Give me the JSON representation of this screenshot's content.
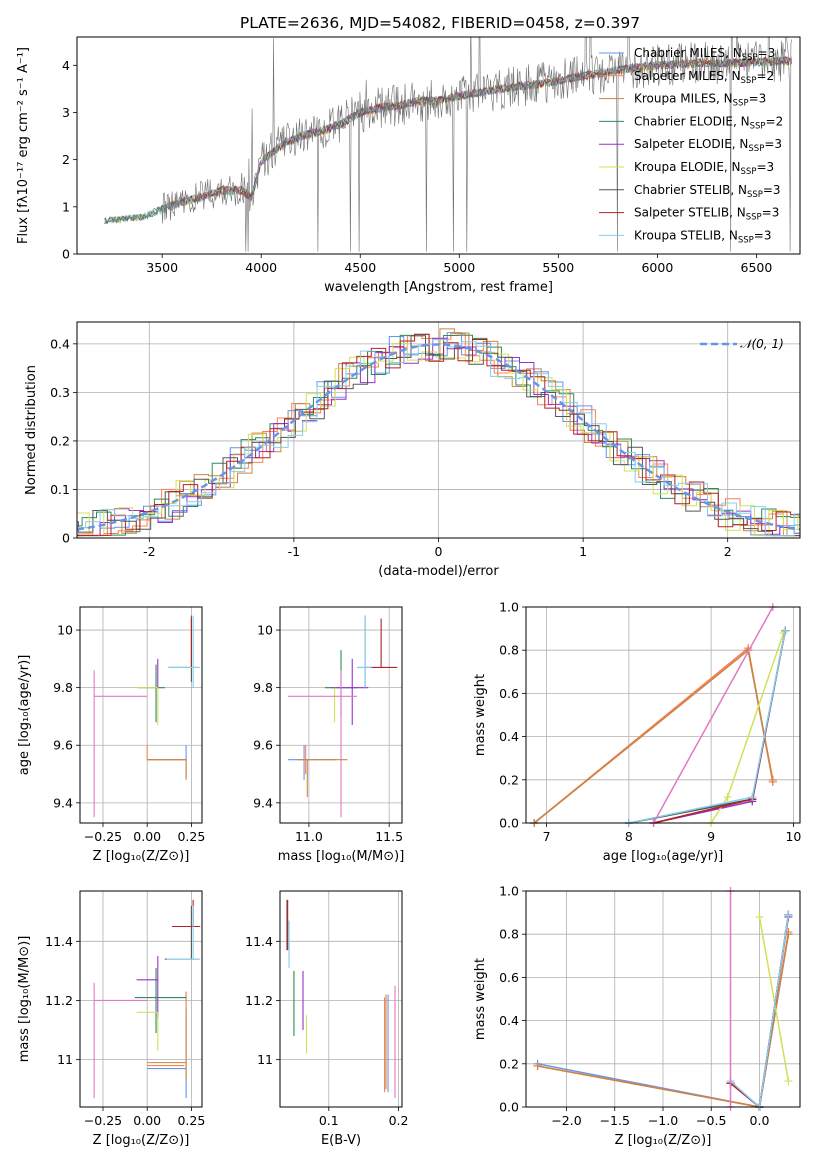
{
  "figure": {
    "title": "PLATE=2636, MJD=54082, FIBERID=0458, z=0.397"
  },
  "series": [
    {
      "name": "Chabrier MILES, N$_{SSP}$=3",
      "label": "Chabrier MILES, N",
      "sub": "SSP",
      "tail": "=3",
      "color": "#6495ed"
    },
    {
      "name": "Salpeter MILES, N$_{SSP}$=2",
      "label": "Salpeter MILES, N",
      "sub": "SSP",
      "tail": "=2",
      "color": "#ff7f50"
    },
    {
      "name": "Kroupa MILES, N$_{SSP}$=3",
      "label": "Kroupa MILES, N",
      "sub": "SSP",
      "tail": "=3",
      "color": "#cd853f"
    },
    {
      "name": "Chabrier ELODIE, N$_{SSP}$=2",
      "label": "Chabrier ELODIE, N",
      "sub": "SSP",
      "tail": "=2",
      "color": "#2e8b57"
    },
    {
      "name": "Salpeter ELODIE, N$_{SSP}$=3",
      "label": "Salpeter ELODIE, N",
      "sub": "SSP",
      "tail": "=3",
      "color": "#9932cc"
    },
    {
      "name": "Kroupa ELODIE, N$_{SSP}$=3",
      "label": "Kroupa ELODIE, N",
      "sub": "SSP",
      "tail": "=3",
      "color": "#d4e157"
    },
    {
      "name": "Chabrier STELIB, N$_{SSP}$=3",
      "label": "Chabrier STELIB, N",
      "sub": "SSP",
      "tail": "=3",
      "color": "#555555"
    },
    {
      "name": "Salpeter STELIB, N$_{SSP}$=3",
      "label": "Salpeter STELIB, N",
      "sub": "SSP",
      "tail": "=3",
      "color": "#b22222"
    },
    {
      "name": "Kroupa STELIB, N$_{SSP}$=3",
      "label": "Kroupa STELIB, N",
      "sub": "SSP",
      "tail": "=3",
      "color": "#87ceeb"
    }
  ],
  "extra_color": "#e377c2",
  "chart_data": [
    {
      "id": "spectrum",
      "type": "line",
      "xlabel": "wavelength [Angstrom, rest frame]",
      "ylabel": "Flux [f$_\\lambda$10$^{-17}$ erg cm$^{-2}$ s$^{-1}$ A$^{-1}$]",
      "ylabel_text": "Flux [fλ10⁻¹⁷ erg cm⁻² s⁻¹ A⁻¹]",
      "xlim": [
        3070,
        6720
      ],
      "ylim": [
        0,
        4.6
      ],
      "xticks": [
        3500,
        4000,
        4500,
        5000,
        5500,
        6000,
        6500
      ],
      "yticks": [
        0,
        1,
        2,
        3,
        4
      ],
      "continuum": {
        "x": [
          3210,
          3300,
          3400,
          3500,
          3600,
          3700,
          3800,
          3900,
          3950,
          4000,
          4100,
          4200,
          4300,
          4400,
          4500,
          4600,
          4700,
          4800,
          4900,
          5000,
          5200,
          5400,
          5600,
          5800,
          6000,
          6200,
          6400,
          6680
        ],
        "y": [
          0.7,
          0.75,
          0.78,
          0.95,
          1.1,
          1.2,
          1.35,
          1.35,
          1.2,
          1.95,
          2.3,
          2.5,
          2.6,
          2.75,
          3.0,
          3.1,
          3.15,
          3.25,
          3.25,
          3.35,
          3.5,
          3.6,
          3.75,
          3.9,
          4.0,
          4.05,
          4.05,
          4.1
        ]
      },
      "grid": false,
      "legend": "top-right"
    },
    {
      "id": "residuals",
      "type": "histogram",
      "xlabel": "(data-model)/error",
      "ylabel": "Normed distribution",
      "xlim": [
        -2.5,
        2.5
      ],
      "ylim": [
        0,
        0.445
      ],
      "xticks": [
        -2,
        -1,
        0,
        1,
        2
      ],
      "yticks": [
        0.0,
        0.1,
        0.2,
        0.3,
        0.4
      ],
      "bin_width": 0.1,
      "reference_curve": "$\\mathcal{N}(0,1)$",
      "reference_label": "𝒩(0, 1)",
      "reference_color": "#6495ed",
      "grid": true,
      "legend": "top-right"
    },
    {
      "id": "age-vs-Z",
      "type": "scatter",
      "xlabel": "Z [log$_{10}$(Z/Z$_\\odot$)]",
      "xlabel_text": "Z [log₁₀(Z/Z⊙)]",
      "ylabel_text": "age  [log₁₀(age/yr)]",
      "xlim": [
        -0.38,
        0.31
      ],
      "ylim": [
        9.33,
        10.08
      ],
      "xticks": [
        -0.25,
        0.0,
        0.25
      ],
      "xticklabels": [
        "−0.25",
        "0.00",
        "0.25"
      ],
      "yticks": [
        9.4,
        9.6,
        9.8,
        10.0
      ],
      "grid": true,
      "points": [
        {
          "series": 0,
          "x": 0.22,
          "y": 9.55,
          "xerr": [
            0.22,
            0.0
          ],
          "yerr": [
            0.06,
            0.05
          ]
        },
        {
          "series": 1,
          "x": 0.0,
          "y": 9.55,
          "xerr": [
            0.0,
            0.21
          ],
          "yerr": [
            0.0,
            0.05
          ]
        },
        {
          "series": 2,
          "x": 0.22,
          "y": 9.55,
          "xerr": [
            0.22,
            0.0
          ],
          "yerr": [
            0.07,
            0.0
          ]
        },
        {
          "series": 3,
          "x": 0.05,
          "y": 9.8,
          "xerr": [
            0.1,
            0.05
          ],
          "yerr": [
            0.12,
            0.08
          ]
        },
        {
          "series": 4,
          "x": 0.06,
          "y": 9.8,
          "xerr": [
            0.0,
            0.0
          ],
          "yerr": [
            0.0,
            0.1
          ]
        },
        {
          "series": 5,
          "x": 0.06,
          "y": 9.8,
          "xerr": [
            0.12,
            0.0
          ],
          "yerr": [
            0.13,
            0.0
          ]
        },
        {
          "series": 6,
          "x": 0.25,
          "y": 9.87,
          "xerr": [
            0.13,
            0.03
          ],
          "yerr": [
            0.05,
            0.18
          ]
        },
        {
          "series": 7,
          "x": 0.25,
          "y": 9.87,
          "xerr": [
            0.0,
            0.0
          ],
          "yerr": [
            0.0,
            0.17
          ]
        },
        {
          "series": 8,
          "x": 0.26,
          "y": 9.87,
          "xerr": [
            0.14,
            0.04
          ],
          "yerr": [
            0.07,
            0.18
          ]
        },
        {
          "series": -1,
          "x": -0.3,
          "y": 9.77,
          "xerr": [
            0.0,
            0.3
          ],
          "yerr": [
            0.42,
            0.09
          ]
        }
      ]
    },
    {
      "id": "age-vs-mass",
      "type": "scatter",
      "xlabel_text": "mass [log₁₀(M/M⊙)]",
      "xlim": [
        10.82,
        11.58
      ],
      "ylim": [
        9.33,
        10.08
      ],
      "xticks": [
        11.0,
        11.5
      ],
      "xticklabels": [
        "11.0",
        "11.5"
      ],
      "yticks": [
        9.4,
        9.6,
        9.8,
        10.0
      ],
      "grid": true,
      "points": [
        {
          "series": 0,
          "x": 10.97,
          "y": 9.55,
          "xerr": [
            0.1,
            0.2
          ],
          "yerr": [
            0.07,
            0.05
          ]
        },
        {
          "series": 1,
          "x": 10.98,
          "y": 9.55,
          "xerr": [
            0.0,
            0.0
          ],
          "yerr": [
            0.05,
            0.05
          ]
        },
        {
          "series": 2,
          "x": 10.99,
          "y": 9.55,
          "xerr": [
            0.06,
            0.25
          ],
          "yerr": [
            0.13,
            0.0
          ]
        },
        {
          "series": 3,
          "x": 11.2,
          "y": 9.8,
          "xerr": [
            0.1,
            0.1
          ],
          "yerr": [
            0.1,
            0.13
          ]
        },
        {
          "series": 4,
          "x": 11.27,
          "y": 9.8,
          "xerr": [
            0.13,
            0.1
          ],
          "yerr": [
            0.13,
            0.1
          ]
        },
        {
          "series": 5,
          "x": 11.16,
          "y": 9.8,
          "xerr": [
            0.0,
            0.0
          ],
          "yerr": [
            0.12,
            0.0
          ]
        },
        {
          "series": 6,
          "x": 11.35,
          "y": 9.87,
          "xerr": [
            0.05,
            0.02
          ],
          "yerr": [
            0.07,
            0.18
          ]
        },
        {
          "series": 7,
          "x": 11.45,
          "y": 9.87,
          "xerr": [
            0.1,
            0.1
          ],
          "yerr": [
            0.0,
            0.17
          ]
        },
        {
          "series": 8,
          "x": 11.35,
          "y": 9.87,
          "xerr": [
            0.05,
            0.04
          ],
          "yerr": [
            0.07,
            0.18
          ]
        },
        {
          "series": -1,
          "x": 11.2,
          "y": 9.77,
          "xerr": [
            0.33,
            0.1
          ],
          "yerr": [
            0.42,
            0.09
          ]
        }
      ]
    },
    {
      "id": "weight-vs-age",
      "type": "line",
      "xlabel_text": "age  [log₁₀(age/yr)]",
      "ylabel": "mass weight",
      "xlim": [
        6.75,
        10.08
      ],
      "ylim": [
        0,
        1
      ],
      "xticks": [
        7,
        8,
        9,
        10
      ],
      "xticklabels": [
        "7",
        "8",
        "9",
        "10"
      ],
      "yticks": [
        0.0,
        0.2,
        0.4,
        0.6,
        0.8,
        1.0
      ],
      "yticklabels": [
        "0.0",
        "0.2",
        "0.4",
        "0.6",
        "0.8",
        "1.0"
      ],
      "grid": true,
      "lines": [
        {
          "series": 0,
          "x": [
            6.85,
            9.45,
            9.75
          ],
          "y": [
            0.0,
            0.8,
            0.19
          ]
        },
        {
          "series": 1,
          "x": [
            6.85,
            9.45,
            9.75
          ],
          "y": [
            0.0,
            0.81,
            0.19
          ]
        },
        {
          "series": 2,
          "x": [
            6.85,
            9.45,
            9.75
          ],
          "y": [
            0.0,
            0.8,
            0.2
          ]
        },
        {
          "series": 3,
          "x": [
            8.0,
            9.5,
            9.9
          ],
          "y": [
            0.0,
            0.11,
            0.89
          ]
        },
        {
          "series": 4,
          "x": [
            8.3,
            9.5,
            9.9
          ],
          "y": [
            0.0,
            0.1,
            0.89
          ]
        },
        {
          "series": 5,
          "x": [
            9.0,
            9.2,
            9.88
          ],
          "y": [
            0.0,
            0.12,
            0.88
          ]
        },
        {
          "series": 6,
          "x": [
            8.0,
            9.5,
            9.9
          ],
          "y": [
            0.0,
            0.11,
            0.89
          ]
        },
        {
          "series": 7,
          "x": [
            8.3,
            9.5,
            9.9
          ],
          "y": [
            0.0,
            0.11,
            0.89
          ]
        },
        {
          "series": 8,
          "x": [
            8.0,
            9.5,
            9.9
          ],
          "y": [
            0.0,
            0.12,
            0.89
          ]
        },
        {
          "series": -1,
          "x": [
            8.3,
            9.75
          ],
          "y": [
            0.0,
            1.0
          ]
        }
      ]
    },
    {
      "id": "mass-vs-Z",
      "type": "scatter",
      "xlabel_text": "Z [log₁₀(Z/Z⊙)]",
      "ylabel_text": "mass [log₁₀(M/M⊙)]",
      "xlim": [
        -0.38,
        0.31
      ],
      "ylim": [
        10.84,
        11.57
      ],
      "xticks": [
        -0.25,
        0.0,
        0.25
      ],
      "xticklabels": [
        "−0.25",
        "0.00",
        "0.25"
      ],
      "yticks": [
        11.0,
        11.2,
        11.4
      ],
      "grid": true,
      "points": [
        {
          "series": 0,
          "x": 0.22,
          "y": 10.97,
          "xerr": [
            0.22,
            0.0
          ],
          "yerr": [
            0.1,
            0.2
          ]
        },
        {
          "series": 1,
          "x": 0.0,
          "y": 10.98,
          "xerr": [
            0.0,
            0.21
          ],
          "yerr": [
            0.0,
            0.0
          ]
        },
        {
          "series": 2,
          "x": 0.22,
          "y": 10.99,
          "xerr": [
            0.22,
            0.0
          ],
          "yerr": [
            0.06,
            0.24
          ]
        },
        {
          "series": 3,
          "x": 0.05,
          "y": 11.21,
          "xerr": [
            0.12,
            0.17
          ],
          "yerr": [
            0.12,
            0.1
          ]
        },
        {
          "series": 4,
          "x": 0.06,
          "y": 11.27,
          "xerr": [
            0.12,
            0.0
          ],
          "yerr": [
            0.13,
            0.08
          ]
        },
        {
          "series": 5,
          "x": 0.06,
          "y": 11.16,
          "xerr": [
            0.12,
            0.0
          ],
          "yerr": [
            0.13,
            0.0
          ]
        },
        {
          "series": 6,
          "x": 0.25,
          "y": 11.34,
          "xerr": [
            0.15,
            0.04
          ],
          "yerr": [
            0.0,
            0.18
          ]
        },
        {
          "series": 7,
          "x": 0.26,
          "y": 11.45,
          "xerr": [
            0.12,
            0.04
          ],
          "yerr": [
            0.0,
            0.09
          ]
        },
        {
          "series": 8,
          "x": 0.26,
          "y": 11.34,
          "xerr": [
            0.15,
            0.04
          ],
          "yerr": [
            0.0,
            0.18
          ]
        },
        {
          "series": -1,
          "x": -0.3,
          "y": 11.2,
          "xerr": [
            0.0,
            0.3
          ],
          "yerr": [
            0.33,
            0.06
          ]
        }
      ]
    },
    {
      "id": "mass-vs-ebv",
      "type": "scatter",
      "xlabel": "E(B-V)",
      "xlim": [
        0.03,
        0.205
      ],
      "ylim": [
        10.84,
        11.57
      ],
      "xticks": [
        0.1,
        0.2
      ],
      "xticklabels": [
        "0.1",
        "0.2"
      ],
      "yticks": [
        11.0,
        11.2,
        11.4
      ],
      "grid": true,
      "points": [
        {
          "series": 0,
          "x": 0.185,
          "y": 11.05,
          "xerr": [
            0,
            0
          ],
          "yerr": [
            0.16,
            0.17
          ]
        },
        {
          "series": 1,
          "x": 0.18,
          "y": 11.05,
          "xerr": [
            0,
            0
          ],
          "yerr": [
            0.16,
            0.16
          ]
        },
        {
          "series": 2,
          "x": 0.182,
          "y": 11.05,
          "xerr": [
            0,
            0
          ],
          "yerr": [
            0.15,
            0.17
          ]
        },
        {
          "series": 3,
          "x": 0.05,
          "y": 11.2,
          "xerr": [
            0,
            0
          ],
          "yerr": [
            0.12,
            0.1
          ]
        },
        {
          "series": 4,
          "x": 0.063,
          "y": 11.2,
          "xerr": [
            0,
            0
          ],
          "yerr": [
            0.1,
            0.1
          ]
        },
        {
          "series": 5,
          "x": 0.068,
          "y": 11.15,
          "xerr": [
            0,
            0
          ],
          "yerr": [
            0.13,
            0.0
          ]
        },
        {
          "series": 6,
          "x": 0.04,
          "y": 11.45,
          "xerr": [
            0,
            0
          ],
          "yerr": [
            0.08,
            0.09
          ]
        },
        {
          "series": 7,
          "x": 0.041,
          "y": 11.45,
          "xerr": [
            0,
            0
          ],
          "yerr": [
            0.08,
            0.09
          ]
        },
        {
          "series": 8,
          "x": 0.043,
          "y": 11.4,
          "xerr": [
            0,
            0
          ],
          "yerr": [
            0.09,
            0.07
          ]
        },
        {
          "series": -1,
          "x": 0.195,
          "y": 11.05,
          "xerr": [
            0,
            0
          ],
          "yerr": [
            0.18,
            0.2
          ]
        }
      ]
    },
    {
      "id": "weight-vs-Z",
      "type": "line",
      "xlabel_text": "Z [log₁₀(Z/Z⊙)]",
      "ylabel": "mass weight",
      "xlim": [
        -2.42,
        0.42
      ],
      "ylim": [
        0,
        1
      ],
      "xticks": [
        -2.0,
        -1.5,
        -1.0,
        -0.5,
        0.0
      ],
      "xticklabels": [
        "−2.0",
        "−1.5",
        "−1.0",
        "−0.5",
        "0.0"
      ],
      "yticks": [
        0.0,
        0.2,
        0.4,
        0.6,
        0.8,
        1.0
      ],
      "yticklabels": [
        "0.0",
        "0.2",
        "0.4",
        "0.6",
        "0.8",
        "1.0"
      ],
      "grid": true,
      "lines": [
        {
          "series": 0,
          "x": [
            -2.3,
            0.0,
            0.3
          ],
          "y": [
            0.2,
            0.0,
            0.8
          ]
        },
        {
          "series": 1,
          "x": [
            -2.3,
            0.0,
            0.3
          ],
          "y": [
            0.19,
            0.0,
            0.81
          ]
        },
        {
          "series": 2,
          "x": [
            -2.3,
            0.0,
            0.3
          ],
          "y": [
            0.19,
            0.0,
            0.8
          ]
        },
        {
          "series": 3,
          "x": [
            -0.3,
            0.0,
            0.3
          ],
          "y": [
            0.11,
            0.0,
            0.89
          ]
        },
        {
          "series": 4,
          "x": [
            -0.3,
            0.0,
            0.3
          ],
          "y": [
            0.11,
            0.0,
            0.88
          ]
        },
        {
          "series": 5,
          "x": [
            0.0,
            0.3
          ],
          "y": [
            0.88,
            0.12
          ]
        },
        {
          "series": 6,
          "x": [
            -0.3,
            0.0,
            0.3
          ],
          "y": [
            0.11,
            0.0,
            0.89
          ]
        },
        {
          "series": 7,
          "x": [
            -0.3,
            0.0,
            0.3
          ],
          "y": [
            0.11,
            0.0,
            0.89
          ]
        },
        {
          "series": 8,
          "x": [
            -0.3,
            0.0,
            0.3
          ],
          "y": [
            0.12,
            0.0,
            0.89
          ]
        },
        {
          "series": -1,
          "x": [
            -0.3,
            -0.3
          ],
          "y": [
            0.0,
            1.0
          ]
        }
      ]
    }
  ]
}
